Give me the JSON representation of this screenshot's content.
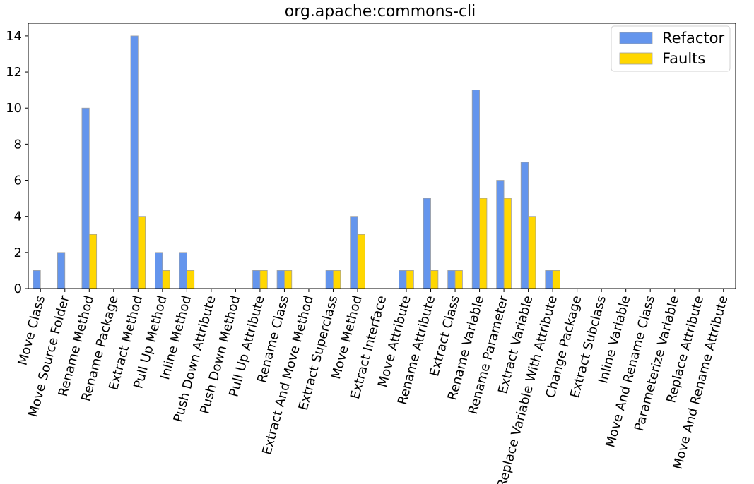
{
  "chart_data": {
    "type": "bar",
    "title": "org.apache:commons-cli",
    "xlabel": "",
    "ylabel": "",
    "ylim": [
      0,
      14.7
    ],
    "yticks": [
      0,
      2,
      4,
      6,
      8,
      10,
      12,
      14
    ],
    "legend_position": "top-right",
    "grid": false,
    "categories": [
      "Move Class",
      "Move Source Folder",
      "Rename Method",
      "Rename Package",
      "Extract Method",
      "Pull Up Method",
      "Inline Method",
      "Push Down Attribute",
      "Push Down Method",
      "Pull Up Attribute",
      "Rename Class",
      "Extract And Move Method",
      "Extract Superclass",
      "Move Method",
      "Extract Interface",
      "Move Attribute",
      "Rename Attribute",
      "Extract Class",
      "Rename Variable",
      "Rename Parameter",
      "Extract Variable",
      "Replace Variable With Attribute",
      "Change Package",
      "Extract Subclass",
      "Inline Variable",
      "Move And Rename Class",
      "Parameterize Variable",
      "Replace Attribute",
      "Move And Rename Attribute"
    ],
    "series": [
      {
        "name": "Refactor",
        "color": "#6495ED",
        "values": [
          1,
          2,
          10,
          0,
          14,
          2,
          2,
          0,
          0,
          1,
          1,
          0,
          1,
          4,
          0,
          1,
          5,
          1,
          11,
          6,
          7,
          1,
          0,
          0,
          0,
          0,
          0,
          0,
          0
        ]
      },
      {
        "name": "Faults",
        "color": "#FFD700",
        "values": [
          0,
          0,
          3,
          0,
          4,
          1,
          1,
          0,
          0,
          1,
          1,
          0,
          1,
          3,
          0,
          1,
          1,
          1,
          5,
          5,
          4,
          1,
          0,
          0,
          0,
          0,
          0,
          0,
          0
        ]
      }
    ]
  }
}
